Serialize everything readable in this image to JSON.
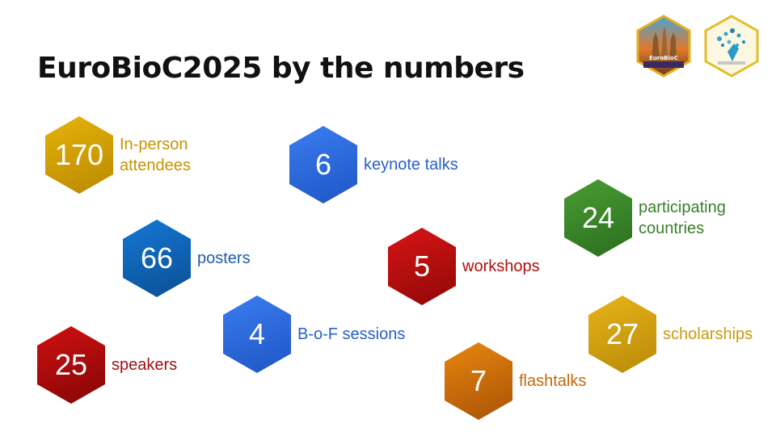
{
  "title": "EuroBioC2025 by the numbers",
  "logos": [
    {
      "name": "eurobioc-logo",
      "text": "EuroBioC"
    },
    {
      "name": "bioconductor-sticker-logo"
    }
  ],
  "stats": [
    {
      "number": "170",
      "line1": "In-person",
      "line2": "attendees",
      "color": "#d9a400",
      "dark": "#a57a00",
      "text": "#c99200"
    },
    {
      "number": "6",
      "line1": "keynote talks",
      "line2": "",
      "color": "#2b6ee8",
      "dark": "#1b4fb8",
      "text": "#2761c9"
    },
    {
      "number": "24",
      "line1": "participating",
      "line2": "countries",
      "color": "#3c8f2c",
      "dark": "#22691b",
      "text": "#38802a"
    },
    {
      "number": "66",
      "line1": "posters",
      "line2": "",
      "color": "#0e6ec9",
      "dark": "#0a4f93",
      "text": "#1e5fa6"
    },
    {
      "number": "5",
      "line1": "workshops",
      "line2": "",
      "color": "#cc0d0d",
      "dark": "#8d0808",
      "text": "#b11010"
    },
    {
      "number": "4",
      "line1": "B-o-F sessions",
      "line2": "",
      "color": "#2b6ee8",
      "dark": "#1b4fb8",
      "text": "#2761c9"
    },
    {
      "number": "27",
      "line1": "scholarships",
      "line2": "",
      "color": "#e0ac12",
      "dark": "#b48408",
      "text": "#c99a10"
    },
    {
      "number": "25",
      "line1": "speakers",
      "line2": "",
      "color": "#c40c0c",
      "dark": "#8a0606",
      "text": "#a70d0d"
    },
    {
      "number": "7",
      "line1": "flashtalks",
      "line2": "",
      "color": "#e07b0e",
      "dark": "#a85306",
      "text": "#c1690f"
    }
  ]
}
